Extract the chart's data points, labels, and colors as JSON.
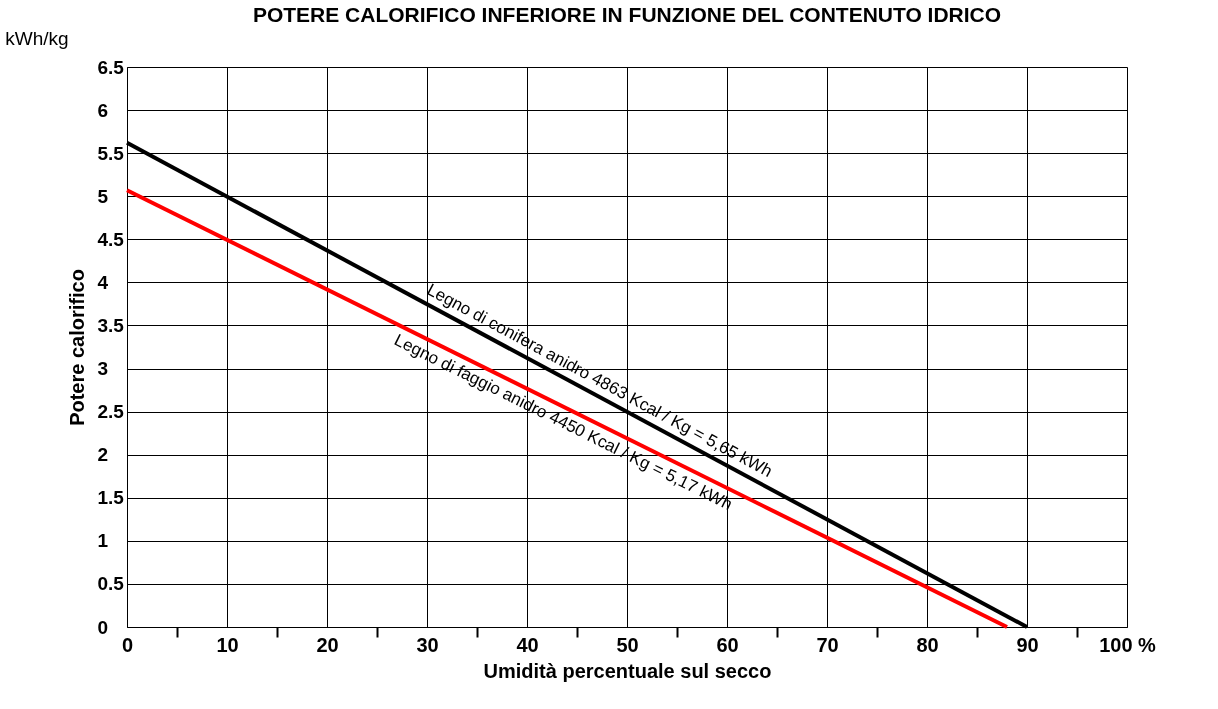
{
  "chart_data": {
    "type": "line",
    "title": "POTERE CALORIFICO INFERIORE IN FUNZIONE DEL CONTENUTO IDRICO",
    "xlabel": "Umidità percentuale sul secco",
    "ylabel": "Potere calorifico",
    "series": [
      {
        "color": "#000000",
        "x": [
          0,
          90
        ],
        "values": [
          5.62,
          0
        ]
      },
      {
        "color": "#ff0000",
        "x": [
          0,
          88
        ],
        "values": [
          5.07,
          0
        ]
      }
    ],
    "annotations": [
      "kWh/kg",
      "Legno di conifera anidro 4863 Kcal / Kg = 5,65 kWh",
      "Legno di faggio anidro 4450 Kcal / Kg = 5,17 kWh"
    ],
    "xlim": [
      0,
      100
    ],
    "ylim": [
      0,
      6.5
    ],
    "xticks": [
      0,
      {
        "value": 5,
        "label": null
      },
      10,
      {
        "value": 15,
        "label": null
      },
      20,
      {
        "value": 25,
        "label": null
      },
      30,
      {
        "value": 35,
        "label": null
      },
      40,
      {
        "value": 45,
        "label": null
      },
      50,
      {
        "value": 55,
        "label": null
      },
      60,
      {
        "value": 65,
        "label": null
      },
      70,
      {
        "value": 75,
        "label": null
      },
      80,
      {
        "value": 85,
        "label": null
      },
      90,
      {
        "value": 95,
        "label": null
      },
      {
        "value": 100,
        "label": "100 %"
      }
    ],
    "yticks": [
      0,
      0.5,
      1,
      1.5,
      2,
      2.5,
      3,
      3.5,
      4,
      4.5,
      5,
      5.5,
      6,
      6.5
    ],
    "grid": true,
    "legend": false,
    "marker": "none",
    "line_style": "solid"
  }
}
